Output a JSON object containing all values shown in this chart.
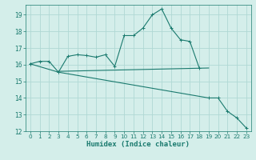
{
  "xlabel": "Humidex (Indice chaleur)",
  "background_color": "#d4eeea",
  "grid_color": "#b0d8d4",
  "line_color": "#1a7a6e",
  "xlim": [
    -0.5,
    23.5
  ],
  "ylim": [
    12,
    19.6
  ],
  "yticks": [
    12,
    13,
    14,
    15,
    16,
    17,
    18,
    19
  ],
  "xticks": [
    0,
    1,
    2,
    3,
    4,
    5,
    6,
    7,
    8,
    9,
    10,
    11,
    12,
    13,
    14,
    15,
    16,
    17,
    18,
    19,
    20,
    21,
    22,
    23
  ],
  "series": [
    {
      "x": [
        0,
        1,
        2,
        3,
        4,
        5,
        6,
        7,
        8,
        9,
        10,
        11,
        12,
        13,
        14,
        15,
        16,
        17,
        18,
        19,
        20,
        21,
        22,
        23
      ],
      "y": [
        16.05,
        16.2,
        16.2,
        15.55,
        16.5,
        16.6,
        16.55,
        16.45,
        16.6,
        15.9,
        17.75,
        17.75,
        18.2,
        19.0,
        19.35,
        18.2,
        17.5,
        17.4,
        15.8,
        null,
        null,
        null,
        null,
        null
      ],
      "has_markers": true
    },
    {
      "x": [
        3,
        19
      ],
      "y": [
        15.6,
        15.8
      ],
      "has_markers": false
    },
    {
      "x": [
        0,
        3,
        19,
        20,
        21,
        22,
        23
      ],
      "y": [
        16.05,
        15.55,
        14.0,
        14.0,
        13.2,
        12.8,
        12.2
      ],
      "has_markers": true
    }
  ]
}
